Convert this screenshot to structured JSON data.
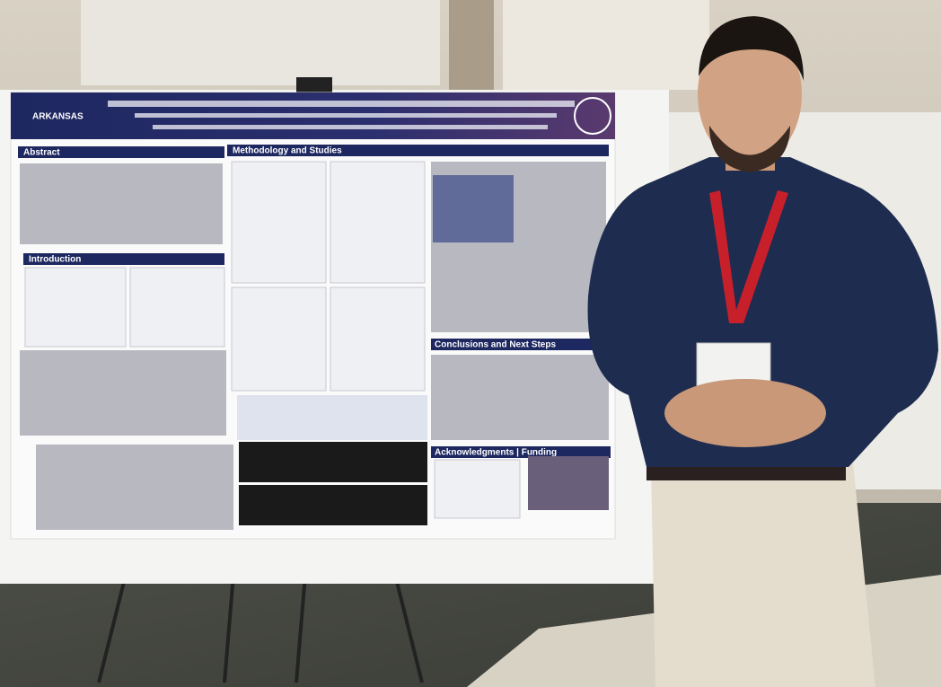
{
  "poster": {
    "logo": "ARKANSAS",
    "sections": [
      "Abstract",
      "Introduction",
      "Methodology and Studies",
      "Conclusions and Next Steps",
      "Acknowledgments | Funding"
    ]
  }
}
